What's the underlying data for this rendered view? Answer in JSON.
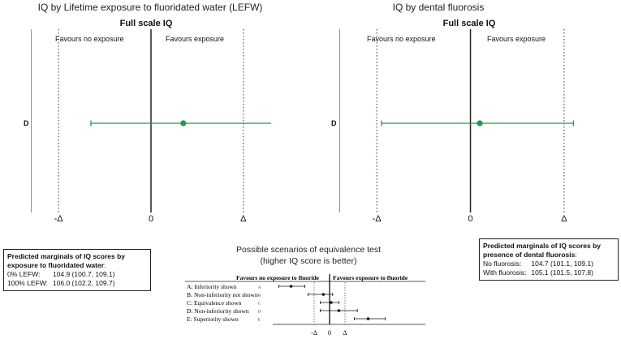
{
  "chart_data": [
    {
      "type": "forest",
      "title": "IQ by Lifetime exposure to fluoridated water (LEFW)",
      "subtitle": "Full scale IQ",
      "left_label": "Favours no exposure",
      "right_label": "Favours exposure",
      "x_ticks": [
        "-Δ",
        "0",
        "Δ"
      ],
      "xlim": [
        -1.3,
        1.3
      ],
      "delta": 1,
      "rows": [
        {
          "label": "D",
          "estimate": 0.35,
          "lower": -0.65,
          "upper": 1.4
        }
      ],
      "color": "#1f9a4a"
    },
    {
      "type": "forest",
      "title": "IQ by dental fluorosis",
      "subtitle": "Full scale IQ",
      "left_label": "Favours no exposure",
      "right_label": "Favours exposure",
      "x_ticks": [
        "-Δ",
        "0",
        "Δ"
      ],
      "xlim": [
        -1.4,
        1.2
      ],
      "delta": 1,
      "rows": [
        {
          "label": "D",
          "estimate": 0.1,
          "lower": -0.95,
          "upper": 1.1
        }
      ],
      "color": "#1f9a4a"
    },
    {
      "type": "forest",
      "title": "Possible scenarios of equivalence test",
      "subtitle": "(higher IQ score is better)",
      "left_label": "Favours no exposure to fluoride",
      "right_label": "Favours exposure to fluoride",
      "x_ticks": [
        "-Δ",
        "0",
        "Δ"
      ],
      "delta": 1,
      "rows": [
        {
          "label": "A: Inferiority shown",
          "key": "A",
          "estimate": -2.5,
          "lower": -3.3,
          "upper": -1.6
        },
        {
          "label": "B: Non-inferiority not shown",
          "key": "B",
          "estimate": -0.4,
          "lower": -1.4,
          "upper": 0.2
        },
        {
          "label": "C: Equivalence shown",
          "key": "C",
          "estimate": 0.1,
          "lower": -0.6,
          "upper": 0.6
        },
        {
          "label": "D: Non-inferiority shown",
          "key": "D",
          "estimate": 0.6,
          "lower": -0.6,
          "upper": 1.8
        },
        {
          "label": "E: Superiority shown",
          "key": "E",
          "estimate": 2.5,
          "lower": 1.6,
          "upper": 3.6
        }
      ]
    }
  ],
  "marginals_left": {
    "heading": "Predicted marginals of IQ scores by exposure to fluoridated water",
    "heading_suffix": ":",
    "rows": [
      {
        "label": "0% LEFW:",
        "value": "104.9 (100.7, 109.1)"
      },
      {
        "label": "100% LEFW:",
        "value": "106.0 (102.2, 109.7)"
      }
    ]
  },
  "marginals_right": {
    "heading": "Predicted marginals of IQ scores by presence of dental fluorosis",
    "heading_suffix": ":",
    "rows": [
      {
        "label": "No fluorosis:",
        "value": "104.7 (101.1, 109.1)"
      },
      {
        "label": "With fluorosis:",
        "value": "105.1 (101.5, 107.8)"
      }
    ]
  }
}
